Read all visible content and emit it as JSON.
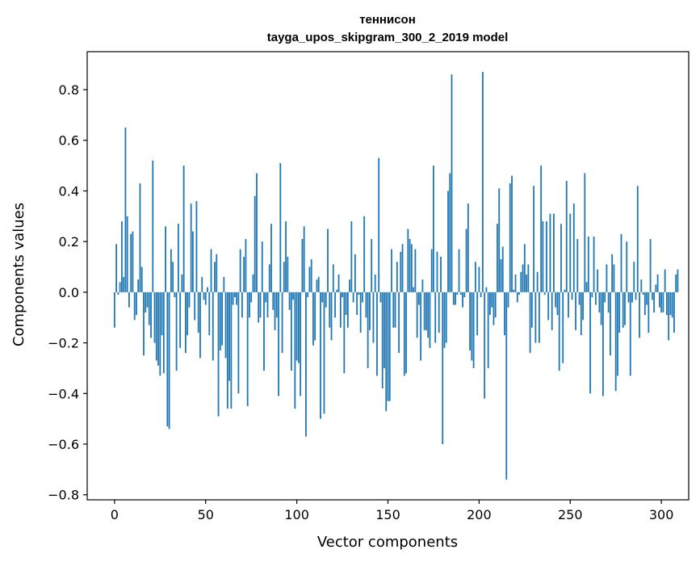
{
  "chart_data": {
    "type": "bar",
    "title": "теннисон",
    "subtitle": "tayga_upos_skipgram_300_2_2019 model",
    "xlabel": "Vector components",
    "ylabel": "Components values",
    "xlim": [
      -15,
      315
    ],
    "ylim": [
      -0.82,
      0.95
    ],
    "xticks": [
      0,
      50,
      100,
      150,
      200,
      250,
      300
    ],
    "xtick_labels": [
      "0",
      "50",
      "100",
      "150",
      "200",
      "250",
      "300"
    ],
    "yticks": [
      -0.8,
      -0.6,
      -0.4,
      -0.2,
      0.0,
      0.2,
      0.4,
      0.6,
      0.8
    ],
    "ytick_labels": [
      "−0.8",
      "−0.6",
      "−0.4",
      "−0.2",
      "0.0",
      "0.2",
      "0.4",
      "0.6",
      "0.8"
    ],
    "bar_color": "#1f77b4",
    "grid": false,
    "values": [
      -0.14,
      0.19,
      -0.01,
      0.04,
      0.28,
      0.06,
      0.65,
      0.3,
      -0.06,
      0.23,
      0.24,
      -0.11,
      -0.09,
      0.05,
      0.43,
      0.1,
      -0.25,
      -0.08,
      -0.06,
      -0.13,
      -0.18,
      0.52,
      -0.2,
      -0.27,
      -0.29,
      -0.33,
      -0.17,
      -0.32,
      0.26,
      -0.53,
      -0.54,
      0.17,
      0.12,
      -0.02,
      -0.31,
      0.27,
      -0.22,
      0.07,
      0.5,
      -0.24,
      -0.17,
      -0.06,
      0.35,
      0.24,
      -0.11,
      0.36,
      -0.16,
      -0.26,
      0.06,
      -0.03,
      -0.05,
      0.02,
      -0.17,
      0.17,
      -0.27,
      0.12,
      0.15,
      -0.49,
      -0.23,
      -0.21,
      0.06,
      -0.26,
      -0.46,
      -0.35,
      -0.46,
      -0.05,
      -0.02,
      -0.05,
      -0.4,
      0.17,
      -0.1,
      0.14,
      0.21,
      -0.45,
      -0.1,
      -0.04,
      0.07,
      0.38,
      0.47,
      -0.12,
      -0.1,
      0.2,
      -0.31,
      -0.04,
      -0.1,
      0.11,
      0.27,
      -0.07,
      -0.15,
      -0.1,
      -0.41,
      0.51,
      -0.24,
      0.12,
      0.28,
      0.14,
      -0.07,
      -0.31,
      -0.03,
      -0.46,
      -0.27,
      -0.28,
      -0.41,
      0.21,
      0.26,
      -0.57,
      -0.02,
      0.1,
      0.13,
      -0.21,
      -0.19,
      0.05,
      0.06,
      -0.5,
      -0.04,
      -0.48,
      -0.06,
      0.25,
      -0.14,
      -0.19,
      0.11,
      -0.1,
      0.01,
      0.07,
      -0.14,
      -0.02,
      -0.32,
      -0.09,
      -0.14,
      0.05,
      0.28,
      -0.04,
      0.15,
      -0.09,
      -0.01,
      -0.16,
      -0.04,
      0.3,
      -0.1,
      -0.3,
      -0.15,
      0.21,
      -0.2,
      0.07,
      -0.33,
      0.53,
      -0.04,
      -0.38,
      -0.3,
      -0.47,
      -0.43,
      -0.43,
      0.17,
      -0.14,
      -0.14,
      0.12,
      -0.24,
      0.16,
      0.19,
      -0.33,
      -0.32,
      0.25,
      0.21,
      0.19,
      0.02,
      0.17,
      -0.18,
      -0.05,
      -0.27,
      0.05,
      -0.15,
      -0.15,
      -0.18,
      -0.22,
      0.17,
      0.5,
      -0.2,
      0.16,
      -0.16,
      0.14,
      -0.6,
      -0.22,
      -0.2,
      0.4,
      0.47,
      0.86,
      -0.05,
      -0.05,
      -0.01,
      0.17,
      -0.01,
      -0.06,
      -0.02,
      0.25,
      0.35,
      -0.23,
      -0.27,
      -0.3,
      0.12,
      -0.17,
      0.1,
      -0.02,
      0.87,
      -0.42,
      0.02,
      -0.3,
      -0.09,
      -0.06,
      -0.13,
      -0.1,
      0.27,
      0.41,
      0.13,
      0.18,
      -0.17,
      -0.74,
      -0.06,
      0.43,
      0.46,
      0.01,
      0.07,
      -0.04,
      -0.01,
      0.08,
      0.11,
      0.19,
      0.07,
      0.11,
      -0.24,
      -0.14,
      0.42,
      -0.2,
      0.08,
      -0.2,
      0.5,
      0.28,
      -0.01,
      0.28,
      -0.11,
      0.31,
      -0.15,
      0.31,
      -0.06,
      -0.09,
      -0.31,
      0.27,
      -0.28,
      0.01,
      0.44,
      -0.1,
      0.31,
      -0.03,
      0.35,
      -0.15,
      0.21,
      -0.05,
      -0.17,
      -0.11,
      0.47,
      0.04,
      0.22,
      -0.4,
      -0.02,
      0.22,
      -0.05,
      0.09,
      -0.08,
      -0.13,
      -0.41,
      -0.04,
      0.11,
      -0.08,
      -0.25,
      0.15,
      0.11,
      -0.39,
      -0.33,
      -0.16,
      0.23,
      -0.14,
      -0.13,
      0.2,
      -0.04,
      -0.33,
      -0.04,
      0.12,
      -0.03,
      0.42,
      -0.18,
      0.05,
      -0.01,
      -0.09,
      -0.05,
      -0.16,
      0.21,
      -0.03,
      -0.08,
      0.03,
      0.07,
      -0.06,
      -0.08,
      -0.08,
      0.09,
      -0.09,
      -0.19,
      -0.09,
      -0.1,
      -0.16,
      0.07,
      0.09
    ]
  }
}
